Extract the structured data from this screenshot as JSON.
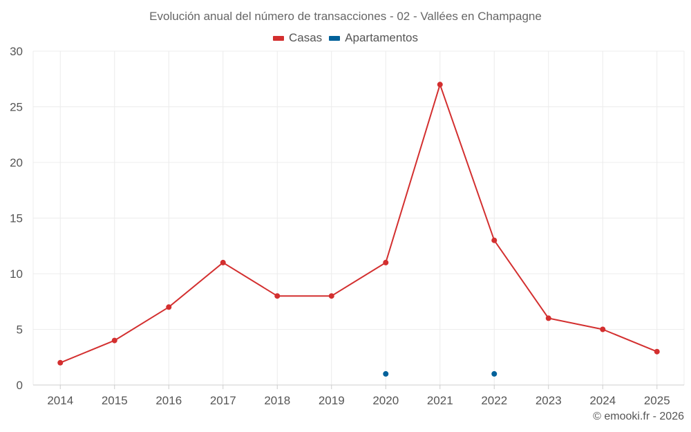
{
  "chart_data": {
    "type": "line",
    "title": "Evolución anual del número de transacciones - 02 - Vallées en Champagne",
    "xlabel": "",
    "ylabel": "",
    "categories": [
      "2014",
      "2015",
      "2016",
      "2017",
      "2018",
      "2019",
      "2020",
      "2021",
      "2022",
      "2023",
      "2024",
      "2025"
    ],
    "ylim": [
      0,
      30
    ],
    "yticks": [
      0,
      5,
      10,
      15,
      20,
      25,
      30
    ],
    "grid": true,
    "legend_position": "top-center",
    "series": [
      {
        "name": "Casas",
        "color": "#d32f2f",
        "style": "line-markers",
        "values": [
          2,
          4,
          7,
          11,
          8,
          8,
          11,
          27,
          13,
          6,
          5,
          3
        ]
      },
      {
        "name": "Apartamentos",
        "color": "#01619a",
        "style": "markers",
        "values": [
          null,
          null,
          null,
          null,
          null,
          null,
          1,
          null,
          1,
          null,
          null,
          null
        ]
      }
    ]
  },
  "credit": "© emooki.fr - 2026"
}
